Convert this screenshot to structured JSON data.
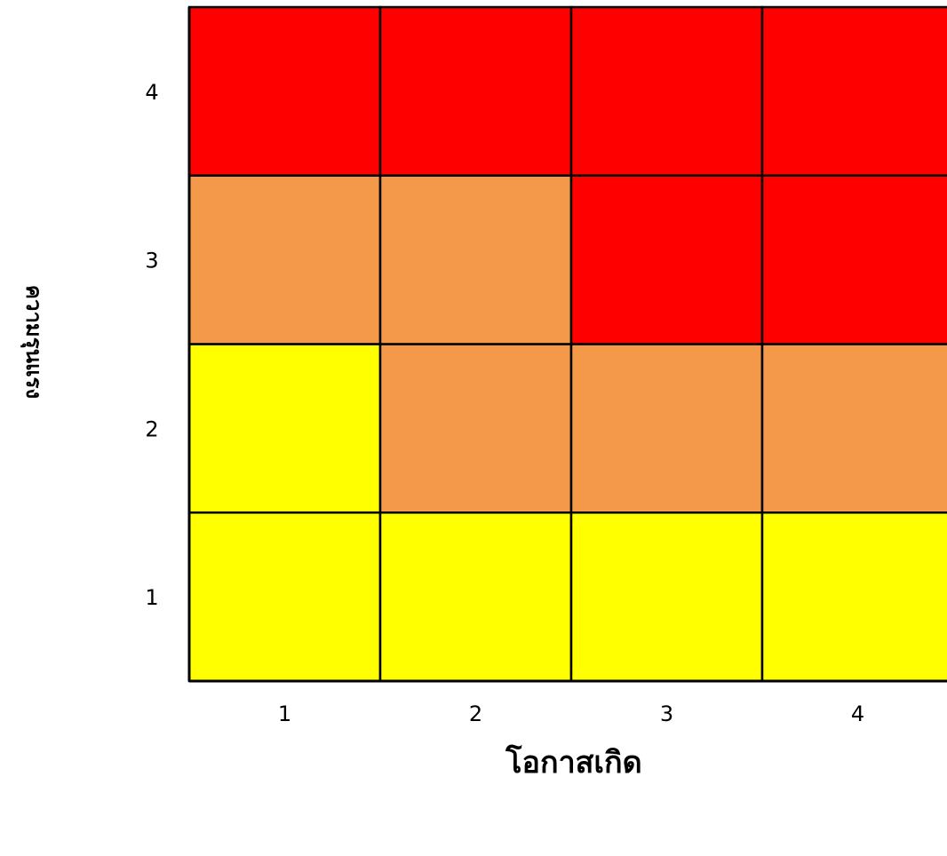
{
  "chart_data": {
    "type": "heatmap",
    "title": "",
    "xlabel": "โอกาสเกิด",
    "ylabel": "ความรุนแรง",
    "x_categories": [
      "1",
      "2",
      "3",
      "4"
    ],
    "y_categories": [
      "1",
      "2",
      "3",
      "4"
    ],
    "values": [
      [
        1,
        1,
        1,
        1
      ],
      [
        1,
        2,
        2,
        2
      ],
      [
        2,
        2,
        3,
        3
      ],
      [
        3,
        3,
        3,
        3
      ]
    ],
    "value_colors": {
      "1": "#ffff00",
      "2": "#f4984a",
      "3": "#ff0000"
    },
    "grid": true,
    "legend": "none"
  }
}
